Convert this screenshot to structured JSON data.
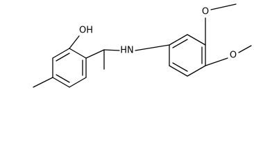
{
  "nodes": [
    {
      "label": "OH"
    },
    {
      "label": "HN"
    },
    {
      "label": "O"
    },
    {
      "label": "O"
    }
  ]
}
